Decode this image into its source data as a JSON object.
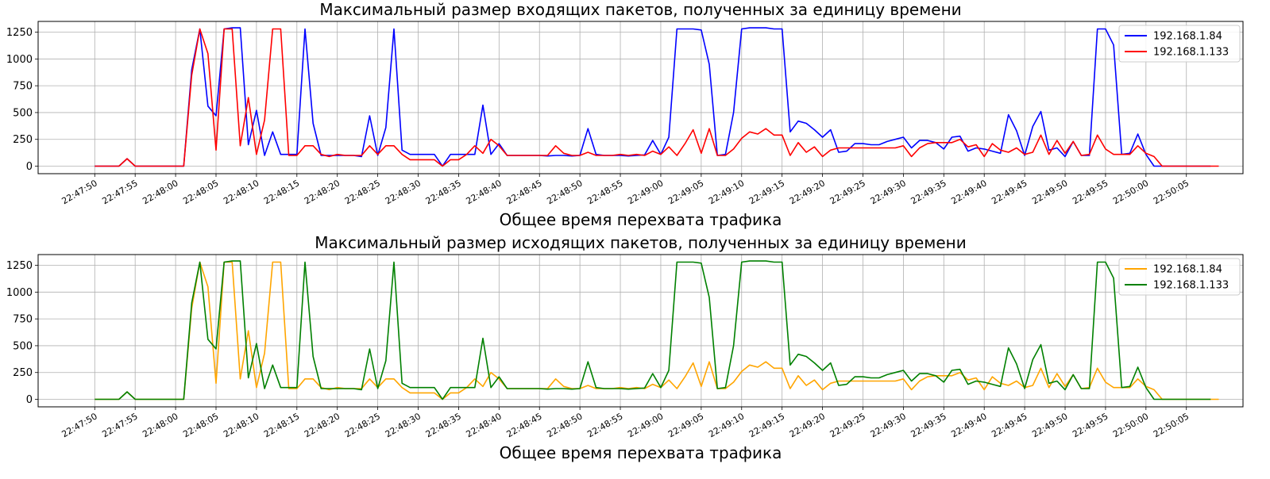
{
  "chart_data": [
    {
      "type": "line",
      "title": "Максимальный размер входящих пакетов, полученных за единицу времени",
      "xlabel": "Общее время перехвата трафика",
      "ylabel": "",
      "x_start": "22:47:50",
      "x_step_seconds": 1,
      "xlim": [
        "22:47:43",
        "22:50:12"
      ],
      "ylim": [
        -70,
        1350
      ],
      "yticks": [
        0,
        250,
        500,
        750,
        1000,
        1250
      ],
      "xtick_labels": [
        "22:47:50",
        "22:47:55",
        "22:48:00",
        "22:48:05",
        "22:48:10",
        "22:48:15",
        "22:48:20",
        "22:48:25",
        "22:48:30",
        "22:48:35",
        "22:48:40",
        "22:48:45",
        "22:48:50",
        "22:48:55",
        "22:49:00",
        "22:49:05",
        "22:49:10",
        "22:49:15",
        "22:49:20",
        "22:49:25",
        "22:49:30",
        "22:49:35",
        "22:49:40",
        "22:49:45",
        "22:49:50",
        "22:49:55",
        "22:50:00",
        "22:50:05"
      ],
      "grid": true,
      "legend_position": "top-right",
      "series": [
        {
          "name": "192.168.1.84",
          "color": "#0000ff",
          "values": [
            0,
            0,
            0,
            0,
            70,
            0,
            0,
            0,
            0,
            0,
            0,
            0,
            900,
            1280,
            560,
            470,
            1280,
            1290,
            1290,
            200,
            520,
            100,
            320,
            110,
            110,
            110,
            1280,
            400,
            100,
            100,
            100,
            100,
            100,
            90,
            470,
            100,
            360,
            1280,
            150,
            110,
            110,
            110,
            110,
            0,
            110,
            110,
            110,
            110,
            570,
            110,
            210,
            100,
            100,
            100,
            100,
            100,
            95,
            100,
            100,
            95,
            100,
            350,
            110,
            100,
            100,
            100,
            95,
            100,
            105,
            240,
            110,
            270,
            1280,
            1280,
            1280,
            1270,
            950,
            100,
            110,
            500,
            1280,
            1290,
            1290,
            1290,
            1280,
            1280,
            320,
            420,
            400,
            340,
            270,
            340,
            130,
            140,
            210,
            210,
            200,
            200,
            230,
            250,
            270,
            170,
            240,
            240,
            220,
            160,
            270,
            280,
            140,
            170,
            160,
            140,
            120,
            480,
            330,
            100,
            370,
            510,
            150,
            170,
            90,
            230,
            100,
            100,
            1280,
            1280,
            1130,
            110,
            120,
            300,
            110,
            0,
            0,
            0,
            0,
            0,
            0,
            0,
            0
          ]
        },
        {
          "name": "192.168.1.133",
          "color": "#ff0000",
          "values": [
            0,
            0,
            0,
            0,
            70,
            0,
            0,
            0,
            0,
            0,
            0,
            0,
            850,
            1280,
            1050,
            150,
            1280,
            1280,
            190,
            640,
            110,
            430,
            1280,
            1280,
            100,
            100,
            190,
            190,
            110,
            90,
            110,
            100,
            100,
            100,
            190,
            110,
            190,
            190,
            110,
            60,
            60,
            60,
            60,
            0,
            60,
            60,
            110,
            190,
            120,
            250,
            190,
            100,
            100,
            100,
            100,
            100,
            100,
            190,
            120,
            100,
            100,
            130,
            100,
            100,
            100,
            110,
            100,
            110,
            100,
            140,
            110,
            180,
            100,
            210,
            340,
            120,
            350,
            100,
            100,
            160,
            260,
            320,
            300,
            350,
            290,
            290,
            100,
            220,
            130,
            180,
            90,
            150,
            170,
            170,
            170,
            170,
            170,
            170,
            170,
            170,
            190,
            90,
            170,
            210,
            220,
            220,
            220,
            250,
            180,
            200,
            90,
            210,
            150,
            130,
            170,
            110,
            130,
            290,
            110,
            240,
            120,
            230,
            100,
            110,
            290,
            160,
            110,
            110,
            110,
            190,
            120,
            90,
            0,
            0,
            0,
            0,
            0,
            0,
            0,
            0
          ]
        }
      ]
    },
    {
      "type": "line",
      "title": "Максимальный размер исходящих пакетов, полученных за единицу времени",
      "xlabel": "Общее время перехвата трафика",
      "ylabel": "",
      "x_start": "22:47:50",
      "x_step_seconds": 1,
      "xlim": [
        "22:47:43",
        "22:50:12"
      ],
      "ylim": [
        -70,
        1350
      ],
      "yticks": [
        0,
        250,
        500,
        750,
        1000,
        1250
      ],
      "xtick_labels": [
        "22:47:50",
        "22:47:55",
        "22:48:00",
        "22:48:05",
        "22:48:10",
        "22:48:15",
        "22:48:20",
        "22:48:25",
        "22:48:30",
        "22:48:35",
        "22:48:40",
        "22:48:45",
        "22:48:50",
        "22:48:55",
        "22:49:00",
        "22:49:05",
        "22:49:10",
        "22:49:15",
        "22:49:20",
        "22:49:25",
        "22:49:30",
        "22:49:35",
        "22:49:40",
        "22:49:45",
        "22:49:50",
        "22:49:55",
        "22:50:00",
        "22:50:05"
      ],
      "grid": true,
      "legend_position": "top-right",
      "series": [
        {
          "name": "192.168.1.84",
          "color": "#ffa500",
          "values": [
            0,
            0,
            0,
            0,
            70,
            0,
            0,
            0,
            0,
            0,
            0,
            0,
            850,
            1280,
            1050,
            150,
            1280,
            1280,
            190,
            640,
            110,
            430,
            1280,
            1280,
            100,
            100,
            190,
            190,
            110,
            90,
            110,
            100,
            100,
            100,
            190,
            110,
            190,
            190,
            110,
            60,
            60,
            60,
            60,
            0,
            60,
            60,
            110,
            190,
            120,
            250,
            190,
            100,
            100,
            100,
            100,
            100,
            100,
            190,
            120,
            100,
            100,
            130,
            100,
            100,
            100,
            110,
            100,
            110,
            100,
            140,
            110,
            180,
            100,
            210,
            340,
            120,
            350,
            100,
            100,
            160,
            260,
            320,
            300,
            350,
            290,
            290,
            100,
            220,
            130,
            180,
            90,
            150,
            170,
            170,
            170,
            170,
            170,
            170,
            170,
            170,
            190,
            90,
            170,
            210,
            220,
            220,
            220,
            250,
            180,
            200,
            90,
            210,
            150,
            130,
            170,
            110,
            130,
            290,
            110,
            240,
            120,
            230,
            100,
            110,
            290,
            160,
            110,
            110,
            110,
            190,
            120,
            90,
            0,
            0,
            0,
            0,
            0,
            0,
            0,
            0
          ]
        },
        {
          "name": "192.168.1.133",
          "color": "#008000",
          "values": [
            0,
            0,
            0,
            0,
            70,
            0,
            0,
            0,
            0,
            0,
            0,
            0,
            900,
            1280,
            560,
            470,
            1280,
            1290,
            1290,
            200,
            520,
            100,
            320,
            110,
            110,
            110,
            1280,
            400,
            100,
            100,
            100,
            100,
            100,
            90,
            470,
            100,
            360,
            1280,
            150,
            110,
            110,
            110,
            110,
            0,
            110,
            110,
            110,
            110,
            570,
            110,
            210,
            100,
            100,
            100,
            100,
            100,
            95,
            100,
            100,
            95,
            100,
            350,
            110,
            100,
            100,
            100,
            95,
            100,
            105,
            240,
            110,
            270,
            1280,
            1280,
            1280,
            1270,
            950,
            100,
            110,
            500,
            1280,
            1290,
            1290,
            1290,
            1280,
            1280,
            320,
            420,
            400,
            340,
            270,
            340,
            130,
            140,
            210,
            210,
            200,
            200,
            230,
            250,
            270,
            170,
            240,
            240,
            220,
            160,
            270,
            280,
            140,
            170,
            160,
            140,
            120,
            480,
            330,
            100,
            370,
            510,
            150,
            170,
            90,
            230,
            100,
            100,
            1280,
            1280,
            1130,
            110,
            120,
            300,
            110,
            0,
            0,
            0,
            0,
            0,
            0,
            0,
            0
          ]
        }
      ]
    }
  ]
}
